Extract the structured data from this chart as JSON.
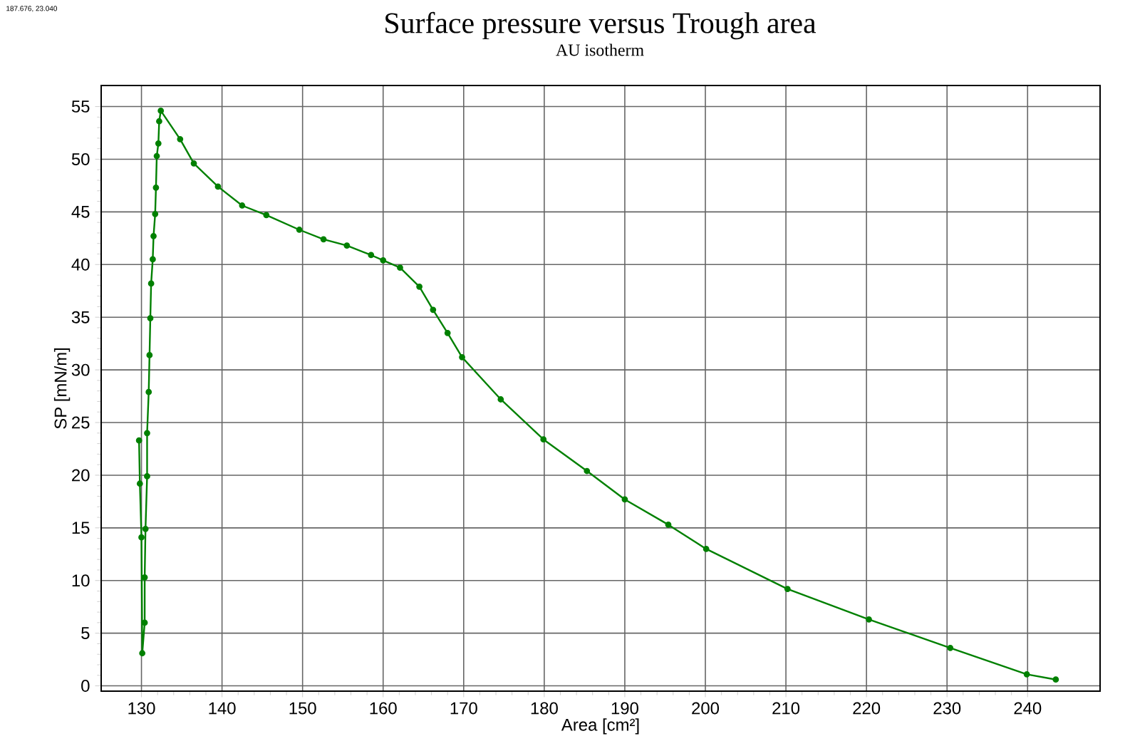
{
  "chart_data": {
    "type": "line",
    "title": "Surface pressure versus Trough area",
    "subtitle": "AU isotherm",
    "xlabel": "Area [cm²]",
    "ylabel": "SP [mN/m]",
    "annotations": [
      "187.676, 23.040"
    ],
    "x": [
      243.5,
      239.9,
      230.4,
      220.3,
      210.2,
      200.1,
      195.4,
      190.0,
      185.3,
      179.9,
      174.6,
      169.8,
      168.0,
      166.2,
      164.5,
      162.1,
      160.0,
      158.5,
      155.5,
      152.6,
      149.6,
      145.5,
      142.5,
      139.5,
      136.5,
      134.8,
      132.4,
      132.2,
      132.1,
      131.9,
      131.8,
      131.7,
      131.5,
      131.4,
      131.2,
      131.1,
      131.0,
      130.9,
      130.7,
      130.7,
      130.5,
      130.4,
      130.4,
      130.1,
      130.0,
      129.8,
      129.7
    ],
    "series": [
      {
        "color": "#008000",
        "values": [
          0.6,
          1.1,
          3.6,
          6.3,
          9.2,
          13.0,
          15.3,
          17.7,
          20.4,
          23.4,
          27.2,
          31.2,
          33.5,
          35.7,
          37.9,
          39.7,
          40.4,
          40.9,
          41.8,
          42.4,
          43.3,
          44.7,
          45.6,
          47.4,
          49.6,
          51.9,
          54.6,
          53.6,
          51.5,
          50.3,
          47.3,
          44.8,
          42.7,
          40.5,
          38.2,
          34.9,
          31.4,
          27.9,
          24.0,
          19.9,
          14.9,
          10.3,
          6.0,
          3.1,
          14.1,
          19.2,
          23.3
        ]
      }
    ],
    "xlim": [
      125,
      249
    ],
    "ylim": [
      -0.5,
      57
    ],
    "xticks": [
      130,
      140,
      150,
      160,
      170,
      180,
      190,
      200,
      210,
      220,
      230,
      240
    ],
    "yticks": [
      0,
      5,
      10,
      15,
      20,
      25,
      30,
      35,
      40,
      45,
      50,
      55
    ],
    "grid": true,
    "marker": "circle",
    "line_style": "solid"
  }
}
